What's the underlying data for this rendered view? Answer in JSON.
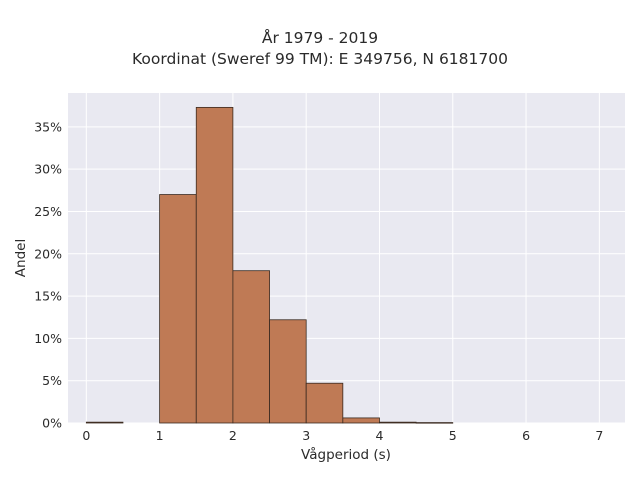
{
  "chart_data": {
    "type": "bar",
    "title_lines": [
      "År 1979 - 2019",
      "Koordinat (Sweref 99 TM): E 349756, N 6181700"
    ],
    "xlabel": "Vågperiod (s)",
    "ylabel": "Andel",
    "xlim": [
      -0.25,
      7.35
    ],
    "ylim": [
      0,
      0.39
    ],
    "xticks": [
      0,
      1,
      2,
      3,
      4,
      5,
      6,
      7
    ],
    "xtick_labels": [
      "0",
      "1",
      "2",
      "3",
      "4",
      "5",
      "6",
      "7"
    ],
    "yticks": [
      0,
      0.05,
      0.1,
      0.15,
      0.2,
      0.25,
      0.3,
      0.35
    ],
    "ytick_labels": [
      "0%",
      "5%",
      "10%",
      "15%",
      "20%",
      "25%",
      "30%",
      "35%"
    ],
    "bin_width": 0.5,
    "bins": [
      {
        "x0": 0.0,
        "x1": 0.5,
        "value": 0.001
      },
      {
        "x0": 0.5,
        "x1": 1.0,
        "value": 0.0
      },
      {
        "x0": 1.0,
        "x1": 1.5,
        "value": 0.27
      },
      {
        "x0": 1.5,
        "x1": 2.0,
        "value": 0.373
      },
      {
        "x0": 2.0,
        "x1": 2.5,
        "value": 0.18
      },
      {
        "x0": 2.5,
        "x1": 3.0,
        "value": 0.122
      },
      {
        "x0": 3.0,
        "x1": 3.5,
        "value": 0.047
      },
      {
        "x0": 3.5,
        "x1": 4.0,
        "value": 0.006
      },
      {
        "x0": 4.0,
        "x1": 4.5,
        "value": 0.001
      },
      {
        "x0": 4.5,
        "x1": 5.0,
        "value": 0.0005
      }
    ],
    "grid": true,
    "colors": {
      "bar_fill": "#bf7a55",
      "bar_edge": "#3a2a20",
      "plot_bg": "#e9e9f1",
      "grid": "#ffffff"
    }
  }
}
